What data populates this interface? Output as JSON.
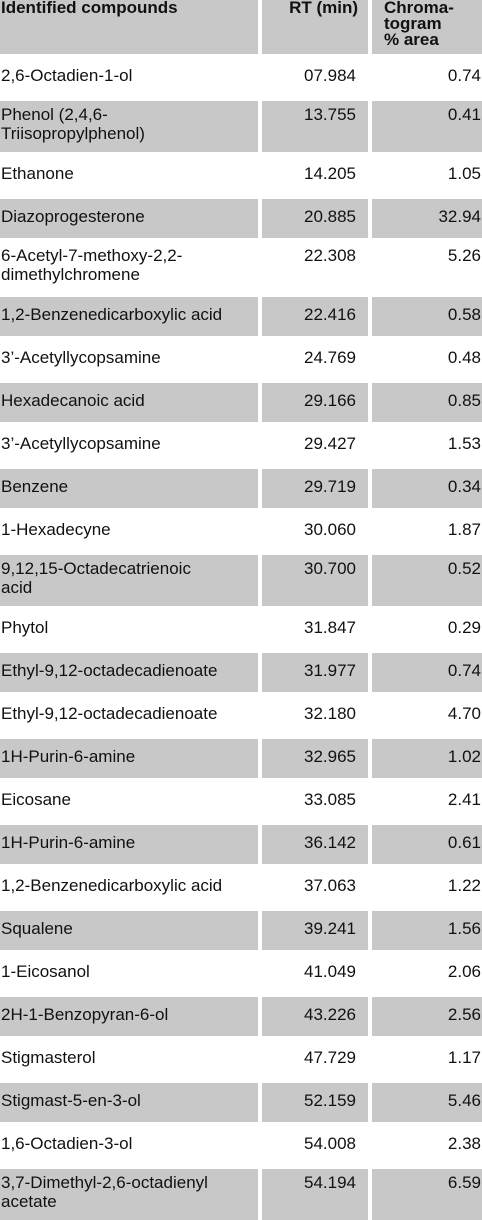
{
  "table": {
    "headers": {
      "compound": "Identified compounds",
      "rt": "RT (min)",
      "area": "Chroma-\ntogram\n% area"
    },
    "rows": [
      {
        "compound": "2,6-Octadien-1-ol",
        "rt": "07.984",
        "area": "0.74"
      },
      {
        "compound": "Phenol (2,4,6-\nTriisopropylphenol)",
        "rt": "13.755",
        "area": "0.41"
      },
      {
        "compound": "Ethanone",
        "rt": "14.205",
        "area": "1.05"
      },
      {
        "compound": "Diazoprogesterone",
        "rt": "20.885",
        "area": "32.94"
      },
      {
        "compound": "6-Acetyl-7-methoxy-2,2-\ndimethylchromene",
        "rt": "22.308",
        "area": "5.26"
      },
      {
        "compound": "1,2-Benzenedicarboxylic acid",
        "rt": "22.416",
        "area": "0.58"
      },
      {
        "compound": "3’-Acetyllycopsamine",
        "rt": "24.769",
        "area": "0.48"
      },
      {
        "compound": "Hexadecanoic acid",
        "rt": "29.166",
        "area": "0.85"
      },
      {
        "compound": "3’-Acetyllycopsamine",
        "rt": "29.427",
        "area": "1.53"
      },
      {
        "compound": "Benzene",
        "rt": "29.719",
        "area": "0.34"
      },
      {
        "compound": "1-Hexadecyne",
        "rt": "30.060",
        "area": "1.87"
      },
      {
        "compound": "9,12,15-Octadecatrienoic\nacid",
        "rt": "30.700",
        "area": "0.52"
      },
      {
        "compound": "Phytol",
        "rt": "31.847",
        "area": "0.29"
      },
      {
        "compound": "Ethyl-9,12-octadecadienoate",
        "rt": "31.977",
        "area": "0.74"
      },
      {
        "compound": "Ethyl-9,12-octadecadienoate",
        "rt": "32.180",
        "area": "4.70"
      },
      {
        "compound": "1H-Purin-6-amine",
        "rt": "32.965",
        "area": "1.02"
      },
      {
        "compound": "Eicosane",
        "rt": "33.085",
        "area": "2.41"
      },
      {
        "compound": "1H-Purin-6-amine",
        "rt": "36.142",
        "area": "0.61"
      },
      {
        "compound": "1,2-Benzenedicarboxylic acid",
        "rt": "37.063",
        "area": "1.22"
      },
      {
        "compound": "Squalene",
        "rt": "39.241",
        "area": "1.56"
      },
      {
        "compound": "1-Eicosanol",
        "rt": "41.049",
        "area": "2.06"
      },
      {
        "compound": "2H-1-Benzopyran-6-ol",
        "rt": "43.226",
        "area": "2.56"
      },
      {
        "compound": "Stigmasterol",
        "rt": "47.729",
        "area": "1.17"
      },
      {
        "compound": "Stigmast-5-en-3-ol",
        "rt": "52.159",
        "area": "5.46"
      },
      {
        "compound": "1,6-Octadien-3-ol",
        "rt": "54.008",
        "area": "2.38"
      },
      {
        "compound": "3,7-Dimethyl-2,6-octadienyl\nacetate",
        "rt": "54.194",
        "area": "6.59"
      }
    ]
  }
}
